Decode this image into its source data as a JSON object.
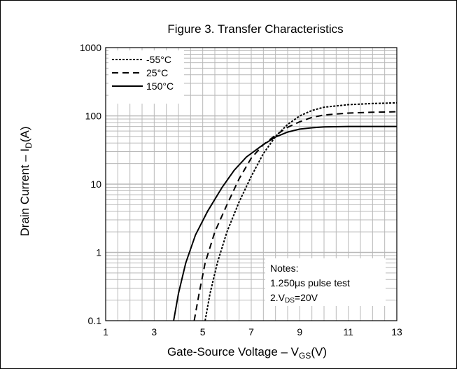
{
  "chart_data": {
    "type": "line",
    "title": "Figure 3. Transfer Characteristics",
    "xlabel": {
      "main": "Gate-Source Voltage –  V",
      "sub": "GS",
      "tail": "(V)"
    },
    "ylabel": {
      "main": "Drain Current  –  I",
      "sub": "D",
      "tail": "(A)"
    },
    "xlim": [
      1,
      13
    ],
    "ylim": [
      0.1,
      1000
    ],
    "yscale": "log",
    "grid": true,
    "legend_position": "top-left",
    "x_ticks": [
      "1",
      "3",
      "5",
      "7",
      "9",
      "11",
      "13"
    ],
    "y_ticks": [
      "0.1",
      "1",
      "10",
      "100",
      "1000"
    ],
    "series": [
      {
        "name": "-55°C",
        "style": "dotted",
        "points": [
          [
            5.1,
            0.1
          ],
          [
            5.3,
            0.25
          ],
          [
            5.6,
            0.7
          ],
          [
            6.0,
            2.0
          ],
          [
            6.5,
            5.5
          ],
          [
            7.0,
            13
          ],
          [
            7.5,
            28
          ],
          [
            8.0,
            50
          ],
          [
            8.5,
            75
          ],
          [
            9.0,
            100
          ],
          [
            9.5,
            120
          ],
          [
            10.0,
            134
          ],
          [
            11.0,
            146
          ],
          [
            12.0,
            152
          ],
          [
            13.0,
            155
          ]
        ]
      },
      {
        "name": "25°C",
        "style": "dashed",
        "points": [
          [
            4.65,
            0.1
          ],
          [
            4.85,
            0.25
          ],
          [
            5.1,
            0.7
          ],
          [
            5.5,
            2.0
          ],
          [
            6.0,
            5.0
          ],
          [
            6.5,
            12
          ],
          [
            7.0,
            24
          ],
          [
            7.5,
            38
          ],
          [
            8.0,
            52
          ],
          [
            8.5,
            68
          ],
          [
            9.0,
            82
          ],
          [
            9.5,
            95
          ],
          [
            10.0,
            103
          ],
          [
            11.0,
            110
          ],
          [
            12.0,
            113
          ],
          [
            13.0,
            115
          ]
        ]
      },
      {
        "name": "150°C",
        "style": "solid",
        "points": [
          [
            3.8,
            0.1
          ],
          [
            4.0,
            0.25
          ],
          [
            4.3,
            0.7
          ],
          [
            4.7,
            1.8
          ],
          [
            5.2,
            4.0
          ],
          [
            5.8,
            9.0
          ],
          [
            6.3,
            16
          ],
          [
            6.8,
            25
          ],
          [
            7.5,
            38
          ],
          [
            8.0,
            49
          ],
          [
            8.5,
            58
          ],
          [
            9.0,
            64
          ],
          [
            9.5,
            67
          ],
          [
            10.0,
            69
          ],
          [
            11.0,
            70
          ],
          [
            12.0,
            70
          ],
          [
            13.0,
            70
          ]
        ]
      }
    ]
  },
  "notes": {
    "heading": "Notes:",
    "line1": "1.250μs pulse test",
    "line2_prefix": "2.V",
    "line2_sub": "DS",
    "line2_suffix": "=20V"
  },
  "colors": {
    "line": "#000000",
    "grid": "#b8b8b8",
    "background": "#ffffff"
  }
}
